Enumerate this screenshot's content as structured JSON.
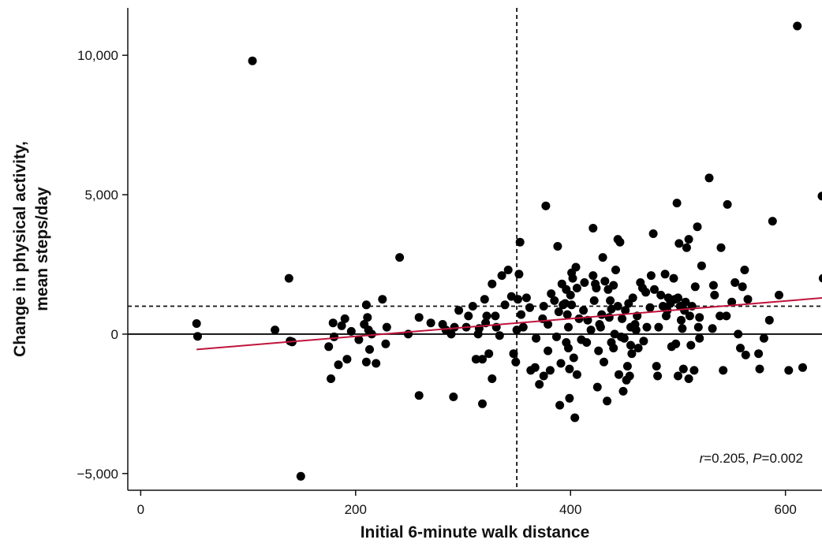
{
  "chart_data": {
    "type": "scatter",
    "xlabel": "Initial 6-minute walk distance",
    "ylabel_line1": "Change in physical activity,",
    "ylabel_line2": "mean steps/day",
    "xlim": [
      -12,
      634
    ],
    "ylim": [
      -5600,
      11700
    ],
    "xticks": [
      0,
      200,
      400,
      600
    ],
    "yticks": [
      -5000,
      0,
      5000,
      10000
    ],
    "xtick_labels": [
      "0",
      "200",
      "400",
      "600"
    ],
    "ytick_labels": [
      "−5,000",
      "0",
      "5,000",
      "10,000"
    ],
    "reference_lines": {
      "x_dashed": 350,
      "y_dashed": 1000,
      "y_solid": 0
    },
    "trend_line": {
      "x": [
        52,
        635
      ],
      "y": [
        -550,
        1300
      ],
      "color": "#c0143c"
    },
    "annotation": {
      "r_label": "r",
      "r_value": "=0.205, ",
      "p_label": "P",
      "p_value": "=0.002"
    },
    "points": [
      [
        52,
        380
      ],
      [
        53,
        -80
      ],
      [
        104,
        9800
      ],
      [
        125,
        150
      ],
      [
        138,
        2000
      ],
      [
        139,
        -250
      ],
      [
        141,
        -280
      ],
      [
        149,
        -5100
      ],
      [
        175,
        -450
      ],
      [
        177,
        -1600
      ],
      [
        179,
        400
      ],
      [
        180,
        -100
      ],
      [
        184,
        -1100
      ],
      [
        187,
        300
      ],
      [
        190,
        550
      ],
      [
        192,
        -900
      ],
      [
        196,
        100
      ],
      [
        203,
        -200
      ],
      [
        208,
        350
      ],
      [
        210,
        1050
      ],
      [
        210,
        -1000
      ],
      [
        211,
        600
      ],
      [
        212,
        150
      ],
      [
        213,
        -550
      ],
      [
        215,
        0
      ],
      [
        219,
        -1050
      ],
      [
        225,
        1250
      ],
      [
        228,
        -350
      ],
      [
        229,
        250
      ],
      [
        241,
        2750
      ],
      [
        249,
        0
      ],
      [
        259,
        600
      ],
      [
        259,
        -2200
      ],
      [
        270,
        400
      ],
      [
        281,
        350
      ],
      [
        284,
        150
      ],
      [
        289,
        0
      ],
      [
        291,
        -2250
      ],
      [
        292,
        250
      ],
      [
        296,
        850
      ],
      [
        303,
        250
      ],
      [
        305,
        650
      ],
      [
        309,
        1000
      ],
      [
        312,
        -900
      ],
      [
        314,
        0
      ],
      [
        315,
        200
      ],
      [
        318,
        -2500
      ],
      [
        318,
        -900
      ],
      [
        320,
        1250
      ],
      [
        321,
        400
      ],
      [
        322,
        650
      ],
      [
        324,
        -700
      ],
      [
        327,
        1800
      ],
      [
        327,
        -1600
      ],
      [
        330,
        650
      ],
      [
        331,
        250
      ],
      [
        334,
        -50
      ],
      [
        336,
        2100
      ],
      [
        339,
        1050
      ],
      [
        342,
        2300
      ],
      [
        345,
        1350
      ],
      [
        347,
        -700
      ],
      [
        349,
        -1000
      ],
      [
        350,
        150
      ],
      [
        351,
        1250
      ],
      [
        352,
        2150
      ],
      [
        353,
        3300
      ],
      [
        354,
        700
      ],
      [
        356,
        250
      ],
      [
        359,
        1300
      ],
      [
        362,
        950
      ],
      [
        363,
        -1300
      ],
      [
        367,
        -1200
      ],
      [
        368,
        -150
      ],
      [
        371,
        -1800
      ],
      [
        374,
        550
      ],
      [
        375,
        -1500
      ],
      [
        375,
        1000
      ],
      [
        377,
        4600
      ],
      [
        379,
        350
      ],
      [
        379,
        -600
      ],
      [
        381,
        -1300
      ],
      [
        382,
        1450
      ],
      [
        385,
        1200
      ],
      [
        387,
        -100
      ],
      [
        388,
        3150
      ],
      [
        389,
        800
      ],
      [
        390,
        -2550
      ],
      [
        391,
        -1050
      ],
      [
        392,
        1800
      ],
      [
        393,
        1050
      ],
      [
        395,
        1100
      ],
      [
        396,
        1600
      ],
      [
        396,
        -300
      ],
      [
        397,
        700
      ],
      [
        398,
        250
      ],
      [
        398,
        -500
      ],
      [
        399,
        -1250
      ],
      [
        399,
        -2300
      ],
      [
        400,
        1400
      ],
      [
        401,
        2200
      ],
      [
        401,
        1050
      ],
      [
        402,
        2000
      ],
      [
        403,
        -850
      ],
      [
        404,
        -3000
      ],
      [
        405,
        2400
      ],
      [
        406,
        1650
      ],
      [
        406,
        -1450
      ],
      [
        408,
        550
      ],
      [
        410,
        -200
      ],
      [
        412,
        850
      ],
      [
        413,
        1850
      ],
      [
        415,
        -300
      ],
      [
        416,
        500
      ],
      [
        419,
        150
      ],
      [
        421,
        2100
      ],
      [
        421,
        3800
      ],
      [
        422,
        1200
      ],
      [
        423,
        1800
      ],
      [
        424,
        1650
      ],
      [
        425,
        -1900
      ],
      [
        426,
        -600
      ],
      [
        427,
        350
      ],
      [
        428,
        250
      ],
      [
        429,
        700
      ],
      [
        430,
        2750
      ],
      [
        431,
        -1000
      ],
      [
        432,
        1900
      ],
      [
        434,
        -2400
      ],
      [
        435,
        1600
      ],
      [
        436,
        600
      ],
      [
        437,
        1200
      ],
      [
        438,
        -300
      ],
      [
        438,
        900
      ],
      [
        440,
        -500
      ],
      [
        440,
        1750
      ],
      [
        441,
        0
      ],
      [
        442,
        2300
      ],
      [
        444,
        3400
      ],
      [
        444,
        1000
      ],
      [
        445,
        -1450
      ],
      [
        446,
        3300
      ],
      [
        447,
        -100
      ],
      [
        448,
        550
      ],
      [
        449,
        -2050
      ],
      [
        450,
        -150
      ],
      [
        451,
        850
      ],
      [
        452,
        -1650
      ],
      [
        453,
        -1150
      ],
      [
        454,
        1100
      ],
      [
        455,
        -1500
      ],
      [
        456,
        -400
      ],
      [
        456,
        250
      ],
      [
        457,
        -700
      ],
      [
        458,
        1300
      ],
      [
        460,
        350
      ],
      [
        461,
        150
      ],
      [
        462,
        650
      ],
      [
        463,
        -500
      ],
      [
        465,
        1850
      ],
      [
        467,
        1650
      ],
      [
        468,
        -250
      ],
      [
        470,
        1500
      ],
      [
        471,
        250
      ],
      [
        474,
        950
      ],
      [
        475,
        2100
      ],
      [
        477,
        3600
      ],
      [
        478,
        1600
      ],
      [
        480,
        -1150
      ],
      [
        481,
        -1500
      ],
      [
        482,
        250
      ],
      [
        484,
        1400
      ],
      [
        486,
        1000
      ],
      [
        488,
        2150
      ],
      [
        489,
        650
      ],
      [
        490,
        850
      ],
      [
        491,
        1300
      ],
      [
        493,
        1100
      ],
      [
        494,
        -450
      ],
      [
        496,
        2000
      ],
      [
        497,
        1250
      ],
      [
        498,
        -350
      ],
      [
        499,
        4700
      ],
      [
        500,
        1300
      ],
      [
        500,
        -1500
      ],
      [
        501,
        3250
      ],
      [
        502,
        1000
      ],
      [
        503,
        500
      ],
      [
        504,
        200
      ],
      [
        505,
        -1250
      ],
      [
        506,
        850
      ],
      [
        507,
        1150
      ],
      [
        508,
        3100
      ],
      [
        510,
        3400
      ],
      [
        510,
        -1600
      ],
      [
        511,
        650
      ],
      [
        512,
        -400
      ],
      [
        513,
        1000
      ],
      [
        515,
        -1300
      ],
      [
        516,
        1700
      ],
      [
        518,
        3850
      ],
      [
        519,
        250
      ],
      [
        520,
        -150
      ],
      [
        520,
        600
      ],
      [
        522,
        2450
      ],
      [
        529,
        5600
      ],
      [
        532,
        200
      ],
      [
        533,
        1750
      ],
      [
        534,
        1400
      ],
      [
        539,
        650
      ],
      [
        540,
        3100
      ],
      [
        542,
        -1300
      ],
      [
        545,
        650
      ],
      [
        546,
        4650
      ],
      [
        550,
        1150
      ],
      [
        553,
        1850
      ],
      [
        556,
        0
      ],
      [
        558,
        -500
      ],
      [
        560,
        1700
      ],
      [
        562,
        2300
      ],
      [
        563,
        -750
      ],
      [
        565,
        1250
      ],
      [
        575,
        -700
      ],
      [
        576,
        -1250
      ],
      [
        580,
        -150
      ],
      [
        585,
        500
      ],
      [
        588,
        4050
      ],
      [
        594,
        1400
      ],
      [
        603,
        -1300
      ],
      [
        611,
        11050
      ],
      [
        616,
        -1200
      ],
      [
        634,
        4950
      ],
      [
        635,
        2000
      ]
    ]
  }
}
